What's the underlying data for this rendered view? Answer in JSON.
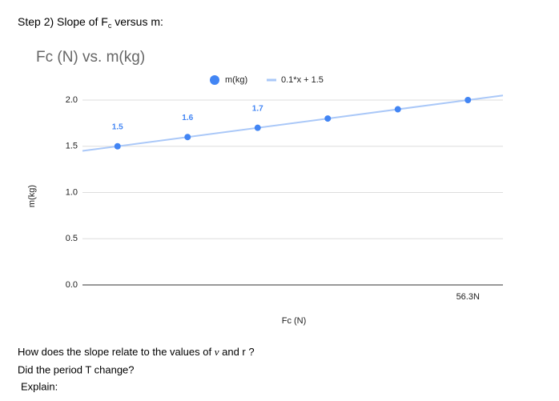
{
  "heading": [
    "Step 2) Slope of F",
    "c",
    " versus m:"
  ],
  "chart_data": {
    "type": "scatter",
    "title": "Fc (N) vs. m(kg)",
    "x_label": "Fc (N)",
    "y_label": "m(kg)",
    "categories": [
      null,
      null,
      null,
      null,
      null,
      "56.3N"
    ],
    "series": [
      {
        "name": "m(kg)",
        "color": "#4285f4",
        "values": [
          1.5,
          1.6,
          1.7,
          1.8,
          1.9,
          2.0
        ],
        "value_labels": [
          "1.5",
          "1.6",
          "1.7",
          null,
          null,
          null
        ]
      }
    ],
    "trendline": {
      "name": "0.1*x + 1.5",
      "slope": 0.1,
      "intercept": 1.5,
      "color": "#aac8f8"
    },
    "ylim": [
      0,
      2
    ],
    "yticks": [
      {
        "value": 0,
        "label": "0.0"
      },
      0.5,
      {
        "value": 1,
        "label": "1.0"
      },
      1.5,
      {
        "value": 2,
        "label": "2.0"
      }
    ],
    "grid": true
  },
  "questions": [
    [
      "How does the slope relate to the values of ",
      "v",
      " and r ?"
    ],
    [
      "Did the period T change?"
    ],
    [
      "Explain:"
    ]
  ]
}
